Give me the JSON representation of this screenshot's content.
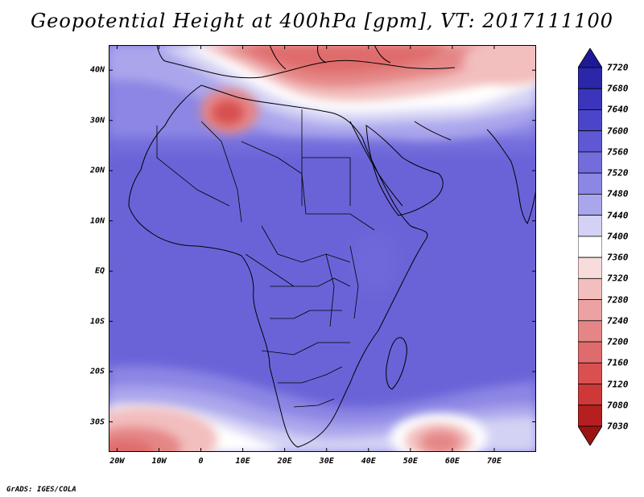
{
  "title": "Geopotential Height at 400hPa [gpm], VT: 2017111100",
  "credit": "GrADS: IGES/COLA",
  "map": {
    "lat_labels": [
      "40N",
      "30N",
      "20N",
      "10N",
      "EQ",
      "10S",
      "20S",
      "30S"
    ],
    "lat_values": [
      40,
      30,
      20,
      10,
      0,
      -10,
      -20,
      -30
    ],
    "lon_labels": [
      "20W",
      "10W",
      "0",
      "10E",
      "20E",
      "30E",
      "40E",
      "50E",
      "60E",
      "70E"
    ],
    "lon_values": [
      -20,
      -10,
      0,
      10,
      20,
      30,
      40,
      50,
      60,
      70
    ],
    "lon_range": [
      -22,
      80
    ],
    "lat_range": [
      -36,
      45
    ]
  },
  "colorbar": {
    "levels": [
      "7720",
      "7680",
      "7640",
      "7600",
      "7560",
      "7520",
      "7480",
      "7440",
      "7400",
      "7360",
      "7320",
      "7280",
      "7240",
      "7200",
      "7160",
      "7120",
      "7080",
      "7030"
    ],
    "colors": [
      "#1e1a96",
      "#2b27a8",
      "#3a35bb",
      "#4b46c9",
      "#5e58d4",
      "#736ddc",
      "#8c86e4",
      "#aaa6ec",
      "#d4d2f4",
      "#ffffff",
      "#f8dcdc",
      "#f2bebe",
      "#eca2a2",
      "#e58686",
      "#df6c6c",
      "#d85050",
      "#cf3838",
      "#b51f1f",
      "#9b1414"
    ]
  }
}
